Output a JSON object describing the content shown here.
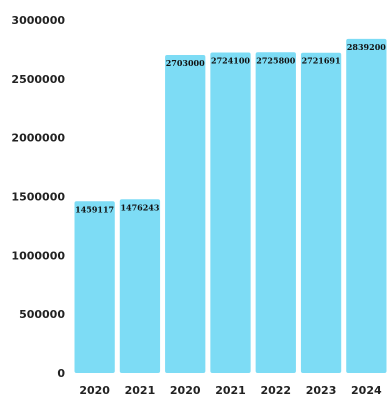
{
  "chart_data": {
    "type": "bar",
    "title": "",
    "xlabel": "",
    "ylabel": "",
    "categories": [
      "2020",
      "2021",
      "2020",
      "2021",
      "2022",
      "2023",
      "2024"
    ],
    "values": [
      1459117,
      1476243,
      2703000,
      2724100,
      2725800,
      2721691,
      2839200
    ],
    "value_labels": [
      "1459117",
      "1476243",
      "2703000",
      "2724100",
      "2725800",
      "2721691",
      "2839200"
    ],
    "ylim": [
      0,
      3000000
    ],
    "yticks": [
      0,
      500000,
      1000000,
      1500000,
      2000000,
      2500000,
      3000000
    ],
    "ytick_labels": [
      "0",
      "500000",
      "1000000",
      "1500000",
      "2000000",
      "2500000",
      "3000000"
    ],
    "grid": false,
    "legend": "none",
    "colors": {
      "bar": "#7ddcf5",
      "text": "#222222"
    }
  }
}
